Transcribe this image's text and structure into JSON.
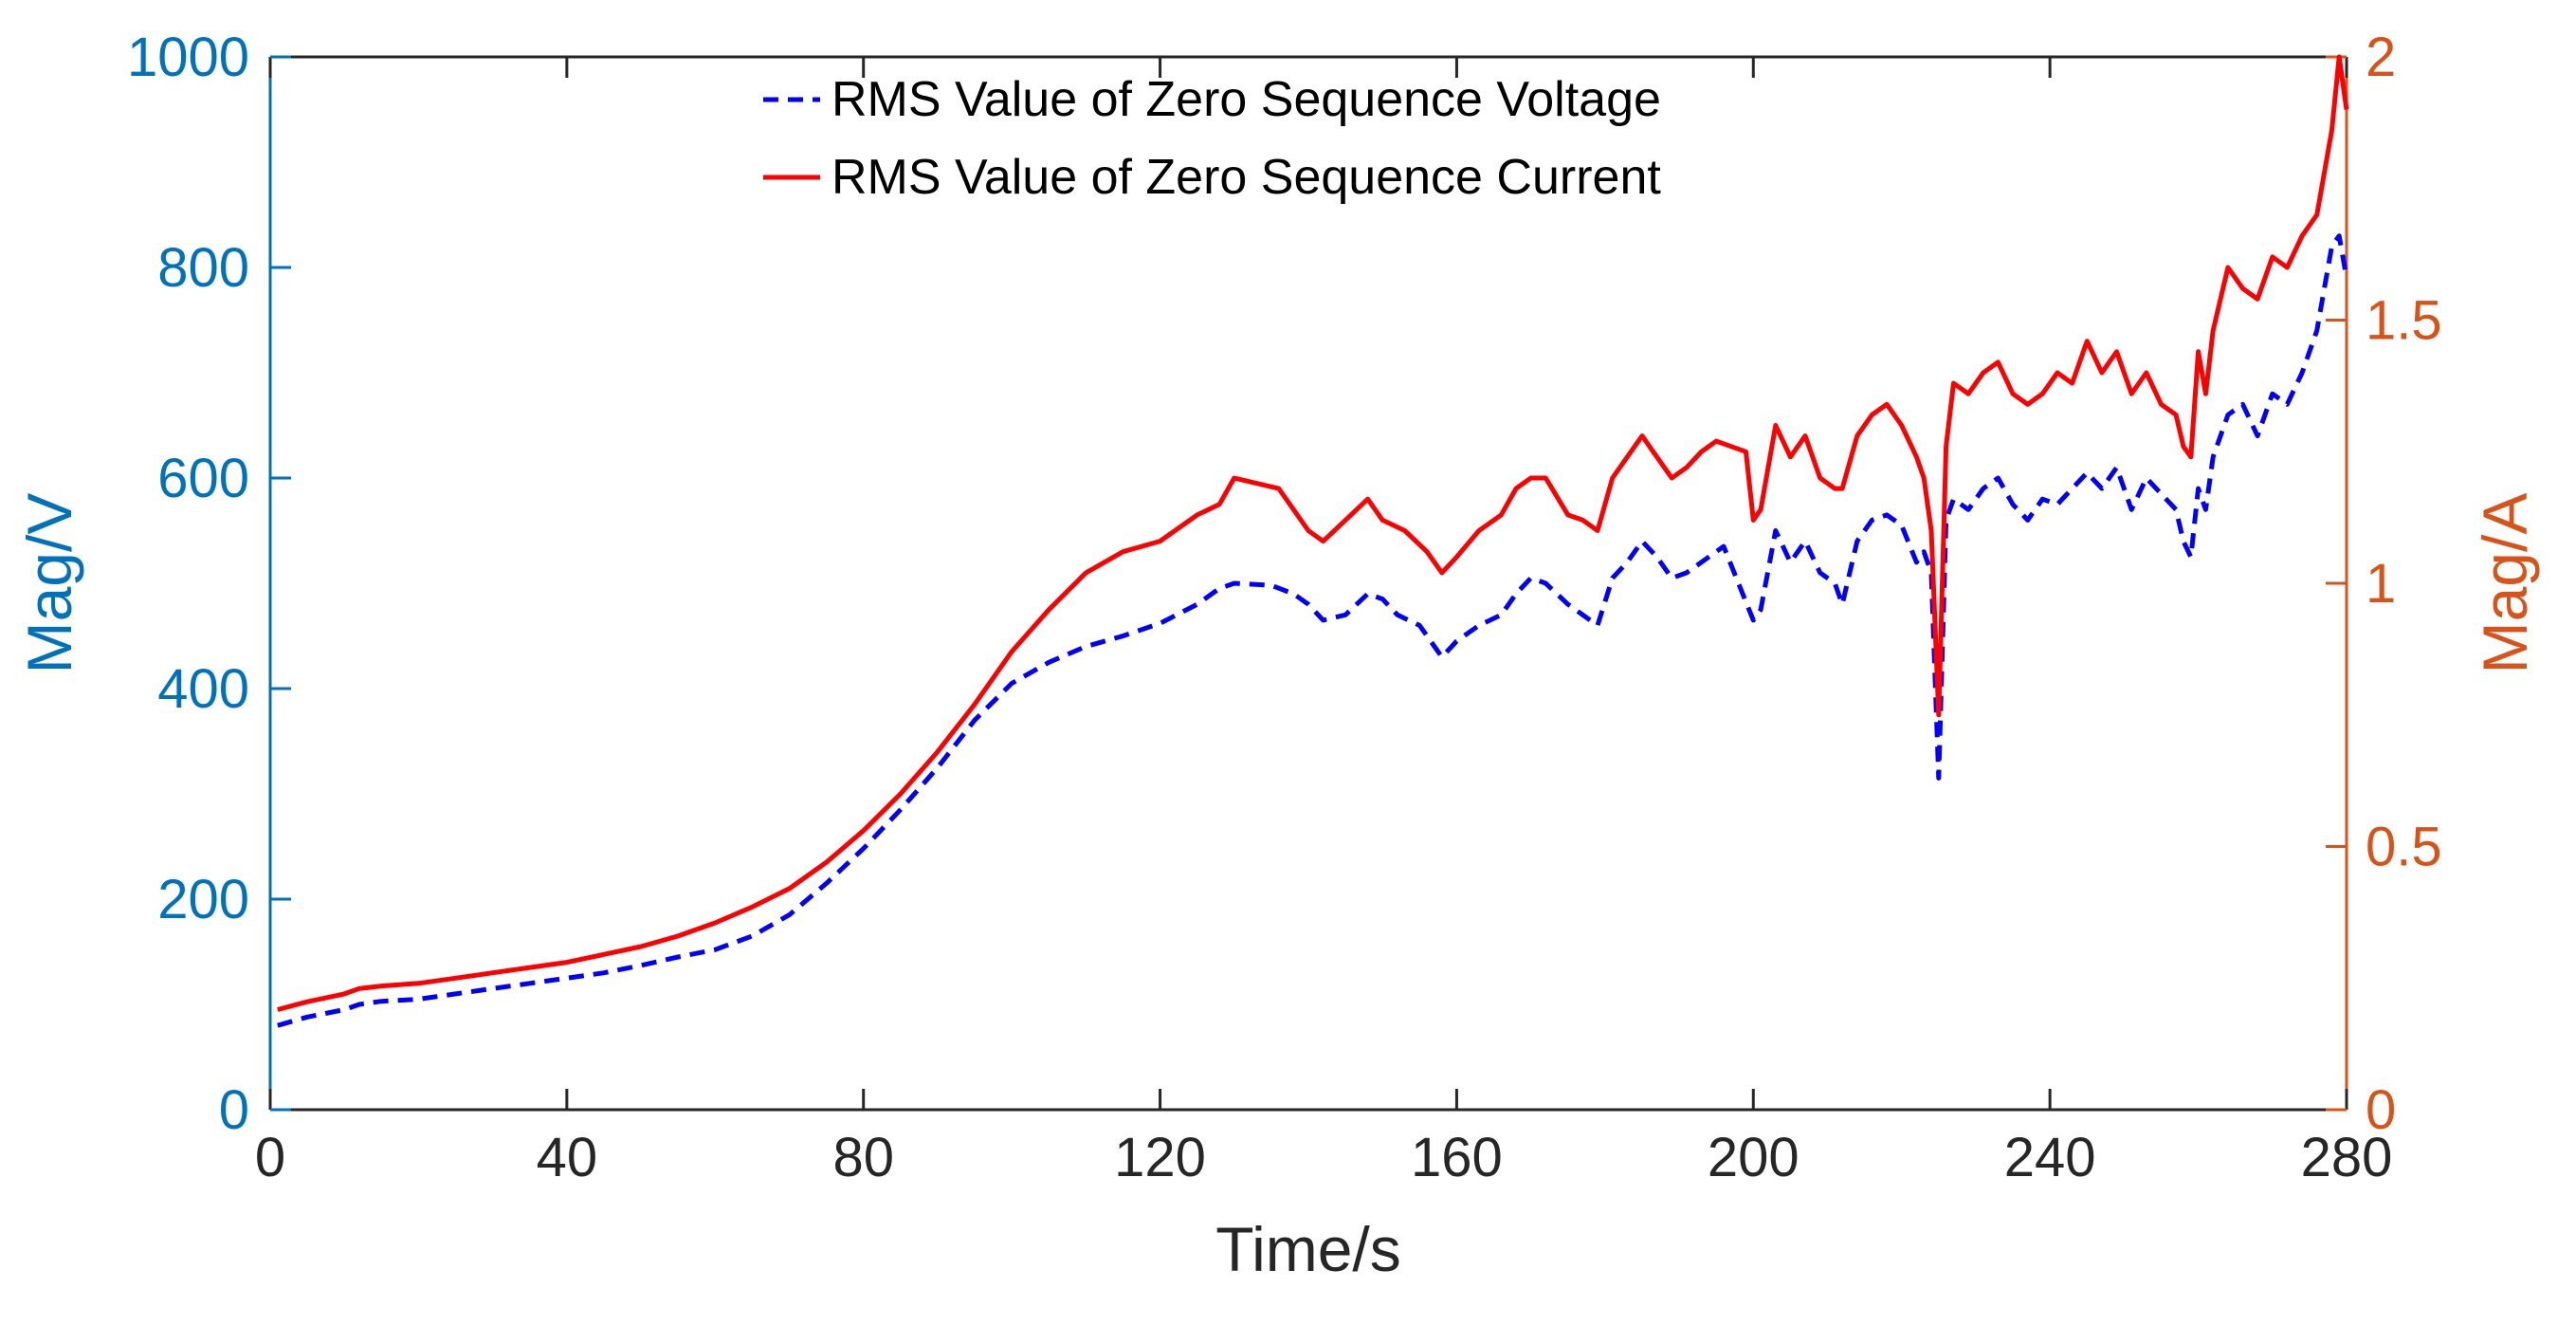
{
  "chart_data": {
    "type": "line",
    "title": "",
    "xlabel": "Time/s",
    "ylabel_left": "Mag/V",
    "ylabel_right": "Mag/A",
    "xlim": [
      0,
      280
    ],
    "ylim_left": [
      0,
      1000
    ],
    "ylim_right": [
      0,
      2
    ],
    "x_ticks": [
      "0",
      "40",
      "80",
      "120",
      "160",
      "200",
      "240",
      "280"
    ],
    "y_left_ticks": [
      "0",
      "200",
      "400",
      "600",
      "800",
      "1000"
    ],
    "y_right_ticks": [
      "0",
      "0.5",
      "1",
      "1.5",
      "2"
    ],
    "grid": false,
    "legend_position": "top-center",
    "colors": {
      "left_axis": "#0072BD",
      "right_axis": "#D95319",
      "voltage": "#0000FF",
      "current": "#FF0000",
      "frame": "#262626"
    },
    "series": [
      {
        "name": "RMS Value of Zero Sequence Voltage",
        "axis": "left",
        "style": "dashed",
        "x": [
          1,
          5,
          10,
          12,
          15,
          20,
          25,
          30,
          35,
          40,
          45,
          50,
          55,
          60,
          65,
          70,
          75,
          80,
          85,
          90,
          95,
          100,
          105,
          110,
          115,
          120,
          125,
          128,
          130,
          135,
          138,
          140,
          142,
          145,
          148,
          150,
          152,
          155,
          158,
          160,
          163,
          166,
          168,
          170,
          172,
          175,
          177,
          179,
          181,
          183,
          185,
          187,
          189,
          191,
          193,
          196,
          198,
          200,
          201,
          203,
          205,
          207,
          209,
          211,
          212,
          214,
          216,
          218,
          220,
          222,
          223,
          224,
          225,
          226,
          227,
          229,
          231,
          233,
          235,
          237,
          239,
          241,
          243,
          245,
          247,
          249,
          251,
          253,
          255,
          257,
          258,
          259,
          260,
          261,
          262,
          264,
          266,
          268,
          270,
          272,
          274,
          276,
          278,
          279,
          280
        ],
        "values": [
          80,
          88,
          95,
          100,
          103,
          105,
          110,
          115,
          120,
          125,
          130,
          137,
          145,
          152,
          165,
          185,
          215,
          248,
          285,
          325,
          370,
          405,
          425,
          440,
          450,
          462,
          480,
          495,
          500,
          498,
          490,
          480,
          465,
          470,
          490,
          485,
          470,
          460,
          430,
          445,
          460,
          470,
          490,
          505,
          500,
          480,
          470,
          460,
          505,
          520,
          540,
          525,
          505,
          510,
          520,
          535,
          500,
          465,
          475,
          550,
          520,
          540,
          510,
          500,
          480,
          540,
          560,
          565,
          555,
          520,
          530,
          510,
          315,
          560,
          580,
          570,
          590,
          600,
          575,
          560,
          580,
          575,
          590,
          605,
          590,
          610,
          570,
          600,
          585,
          570,
          540,
          525,
          590,
          570,
          620,
          660,
          670,
          640,
          680,
          670,
          700,
          740,
          820,
          830,
          790
        ]
      },
      {
        "name": "RMS Value of Zero Sequence Current",
        "axis": "right",
        "style": "solid",
        "x": [
          1,
          5,
          10,
          12,
          15,
          20,
          25,
          30,
          35,
          40,
          45,
          50,
          55,
          60,
          65,
          70,
          75,
          80,
          85,
          90,
          95,
          100,
          105,
          110,
          115,
          120,
          125,
          128,
          130,
          133,
          136,
          138,
          140,
          142,
          145,
          148,
          150,
          153,
          156,
          158,
          160,
          163,
          166,
          168,
          170,
          172,
          175,
          177,
          179,
          181,
          183,
          185,
          187,
          189,
          191,
          193,
          195,
          197,
          199,
          200,
          201,
          203,
          205,
          207,
          209,
          211,
          212,
          214,
          216,
          218,
          220,
          222,
          223,
          224,
          225,
          226,
          227,
          229,
          231,
          233,
          235,
          237,
          239,
          241,
          243,
          245,
          247,
          249,
          251,
          253,
          255,
          257,
          258,
          259,
          260,
          261,
          262,
          264,
          266,
          268,
          270,
          272,
          274,
          276,
          278,
          279,
          280
        ],
        "values": [
          0.19,
          0.205,
          0.22,
          0.23,
          0.235,
          0.24,
          0.25,
          0.26,
          0.27,
          0.28,
          0.295,
          0.31,
          0.33,
          0.355,
          0.385,
          0.42,
          0.47,
          0.53,
          0.6,
          0.68,
          0.77,
          0.87,
          0.95,
          1.02,
          1.06,
          1.08,
          1.13,
          1.15,
          1.2,
          1.19,
          1.18,
          1.14,
          1.1,
          1.08,
          1.12,
          1.16,
          1.12,
          1.1,
          1.06,
          1.02,
          1.05,
          1.1,
          1.13,
          1.18,
          1.2,
          1.2,
          1.13,
          1.12,
          1.1,
          1.2,
          1.24,
          1.28,
          1.24,
          1.2,
          1.22,
          1.25,
          1.27,
          1.26,
          1.25,
          1.12,
          1.14,
          1.3,
          1.24,
          1.28,
          1.2,
          1.18,
          1.18,
          1.28,
          1.32,
          1.34,
          1.3,
          1.24,
          1.2,
          1.1,
          0.75,
          1.26,
          1.38,
          1.36,
          1.4,
          1.42,
          1.36,
          1.34,
          1.36,
          1.4,
          1.38,
          1.46,
          1.4,
          1.44,
          1.36,
          1.4,
          1.34,
          1.32,
          1.26,
          1.24,
          1.44,
          1.36,
          1.48,
          1.6,
          1.56,
          1.54,
          1.62,
          1.6,
          1.66,
          1.7,
          1.86,
          2.0,
          1.9
        ]
      }
    ]
  }
}
